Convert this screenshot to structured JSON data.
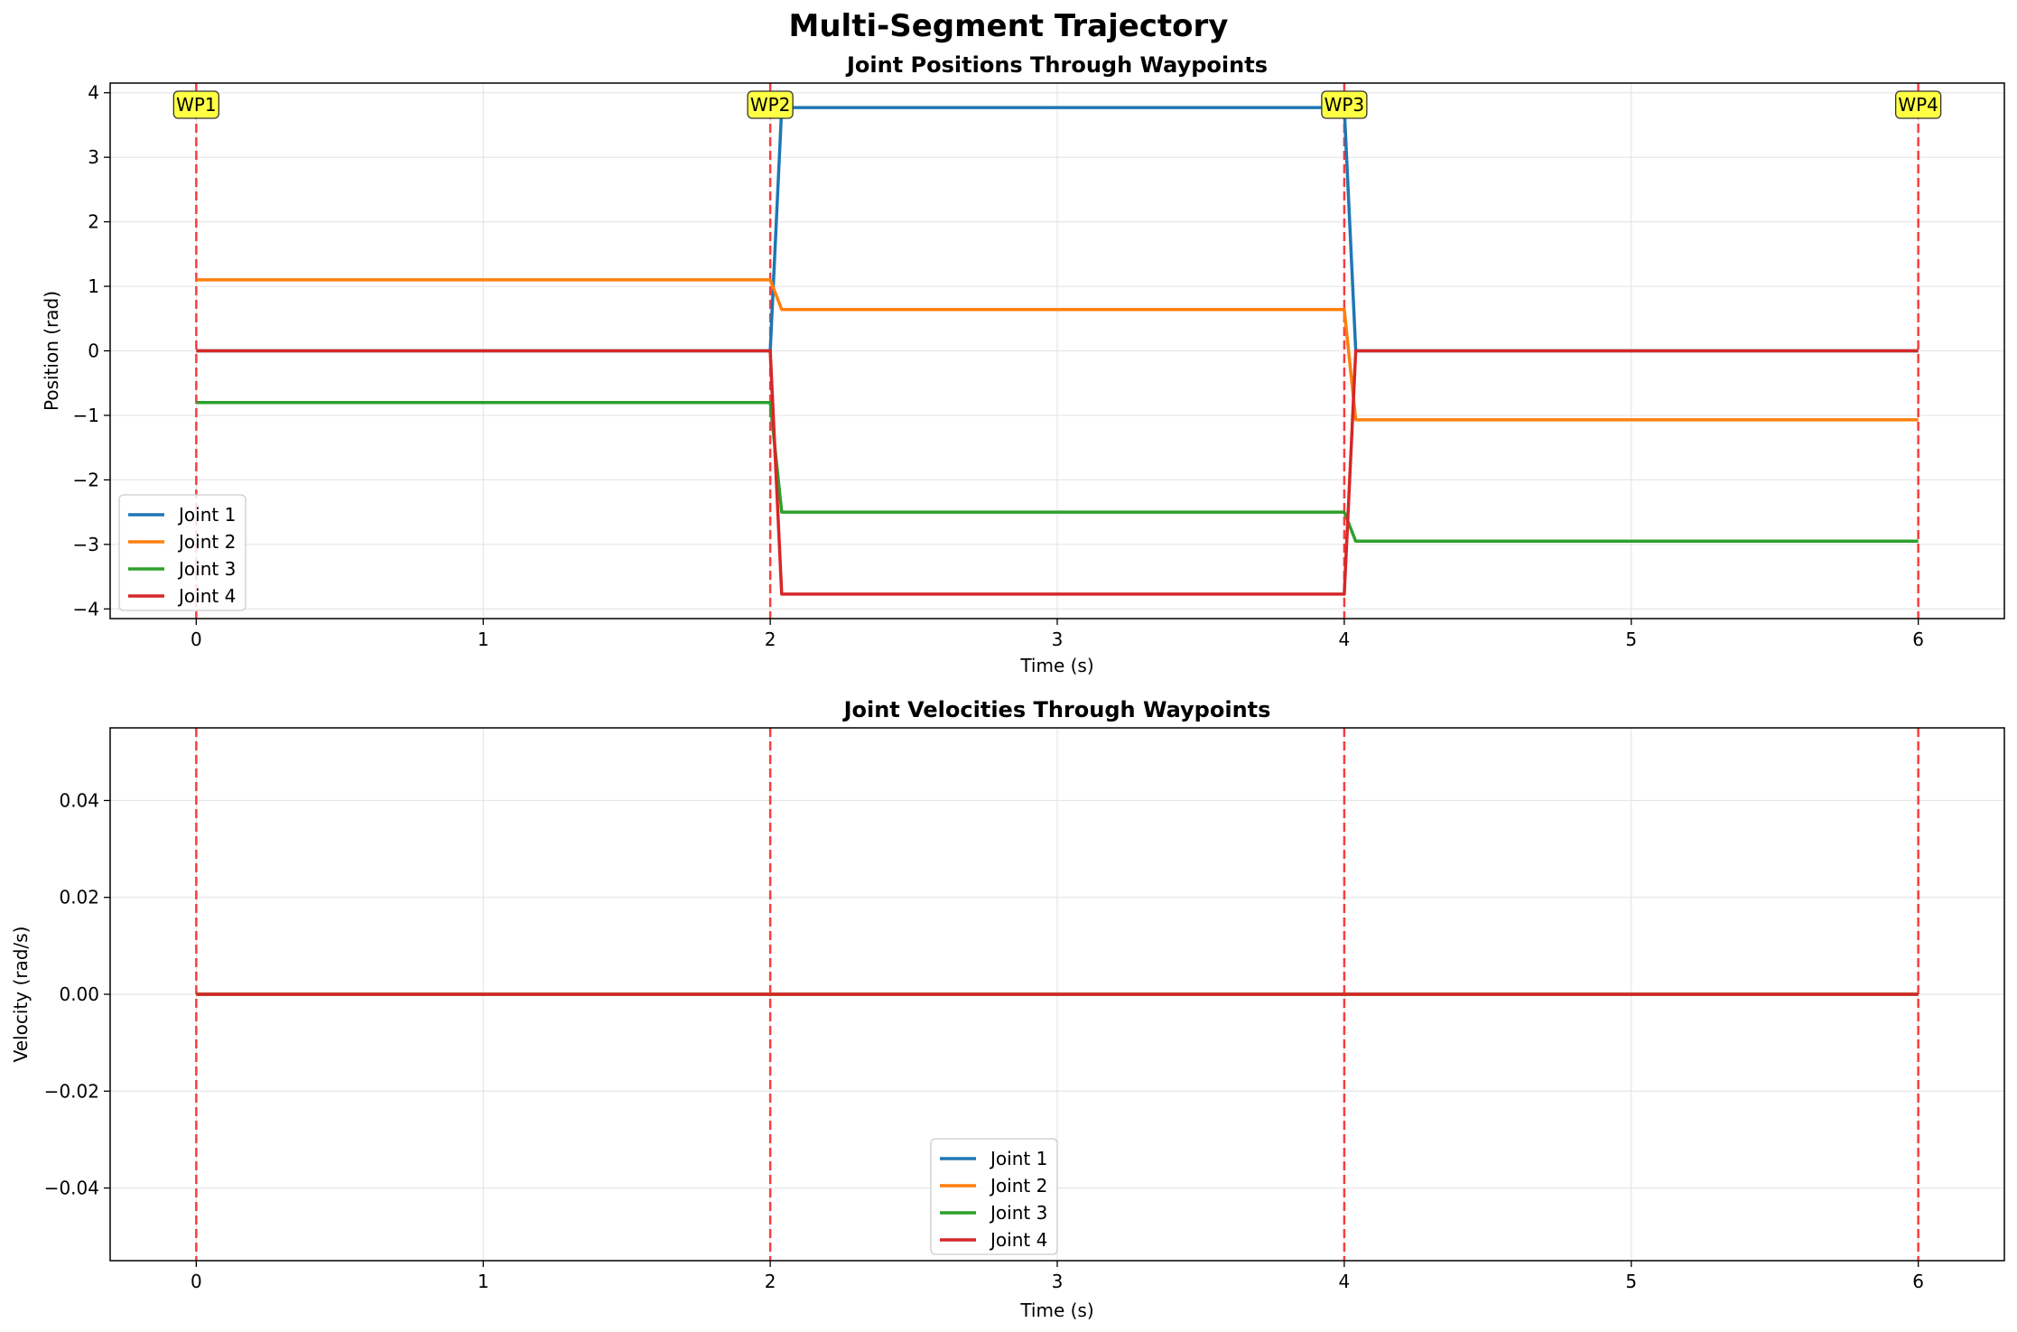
{
  "figure": {
    "title": "Multi-Segment Trajectory",
    "waypoint_line_color": "#ff0000",
    "waypoint_label_bg": "#ffff44"
  },
  "chart_data": [
    {
      "type": "line",
      "title": "Joint Positions Through Waypoints",
      "xlabel": "Time (s)",
      "ylabel": "Position (rad)",
      "xlim": [
        -0.3,
        6.3
      ],
      "ylim": [
        -4.15,
        4.15
      ],
      "xticks": [
        0,
        1,
        2,
        3,
        4,
        5,
        6
      ],
      "xtick_labels": [
        "0",
        "1",
        "2",
        "3",
        "4",
        "5",
        "6"
      ],
      "yticks": [
        -4,
        -3,
        -2,
        -1,
        0,
        1,
        2,
        3,
        4
      ],
      "ytick_labels": [
        "−4",
        "−3",
        "−2",
        "−1",
        "0",
        "1",
        "2",
        "3",
        "4"
      ],
      "grid": true,
      "legend": "lower-left",
      "waypoints": [
        {
          "label": "WP1",
          "x": 0
        },
        {
          "label": "WP2",
          "x": 2
        },
        {
          "label": "WP3",
          "x": 4
        },
        {
          "label": "WP4",
          "x": 6
        }
      ],
      "series": [
        {
          "name": "Joint 1",
          "color": "#1f77b4",
          "x": [
            0,
            2,
            2.04,
            4,
            4.04,
            6
          ],
          "y": [
            0,
            0,
            3.77,
            3.77,
            0,
            0
          ]
        },
        {
          "name": "Joint 2",
          "color": "#ff7f0e",
          "x": [
            0,
            2,
            2.04,
            4,
            4.04,
            6
          ],
          "y": [
            1.1,
            1.1,
            0.64,
            0.64,
            -1.07,
            -1.07
          ]
        },
        {
          "name": "Joint 3",
          "color": "#2ca02c",
          "x": [
            0,
            2,
            2.04,
            4,
            4.04,
            6
          ],
          "y": [
            -0.8,
            -0.8,
            -2.5,
            -2.5,
            -2.95,
            -2.95
          ]
        },
        {
          "name": "Joint 4",
          "color": "#d62728",
          "x": [
            0,
            2,
            2.04,
            4,
            4.04,
            6
          ],
          "y": [
            0,
            0,
            -3.77,
            -3.77,
            0,
            0
          ]
        }
      ]
    },
    {
      "type": "line",
      "title": "Joint Velocities Through Waypoints",
      "xlabel": "Time (s)",
      "ylabel": "Velocity (rad/s)",
      "xlim": [
        -0.3,
        6.3
      ],
      "ylim": [
        -0.055,
        0.055
      ],
      "xticks": [
        0,
        1,
        2,
        3,
        4,
        5,
        6
      ],
      "xtick_labels": [
        "0",
        "1",
        "2",
        "3",
        "4",
        "5",
        "6"
      ],
      "yticks": [
        -0.04,
        -0.02,
        0,
        0.02,
        0.04
      ],
      "ytick_labels": [
        "−0.04",
        "−0.02",
        "0.00",
        "0.02",
        "0.04"
      ],
      "grid": true,
      "legend": "lower-center",
      "waypoints": [
        {
          "x": 0
        },
        {
          "x": 2
        },
        {
          "x": 4
        },
        {
          "x": 6
        }
      ],
      "series": [
        {
          "name": "Joint 1",
          "color": "#1f77b4",
          "x": [
            0,
            6
          ],
          "y": [
            0,
            0
          ]
        },
        {
          "name": "Joint 2",
          "color": "#ff7f0e",
          "x": [
            0,
            6
          ],
          "y": [
            0,
            0
          ]
        },
        {
          "name": "Joint 3",
          "color": "#2ca02c",
          "x": [
            0,
            6
          ],
          "y": [
            0,
            0
          ]
        },
        {
          "name": "Joint 4",
          "color": "#d62728",
          "x": [
            0,
            6
          ],
          "y": [
            0,
            0
          ]
        }
      ]
    }
  ]
}
